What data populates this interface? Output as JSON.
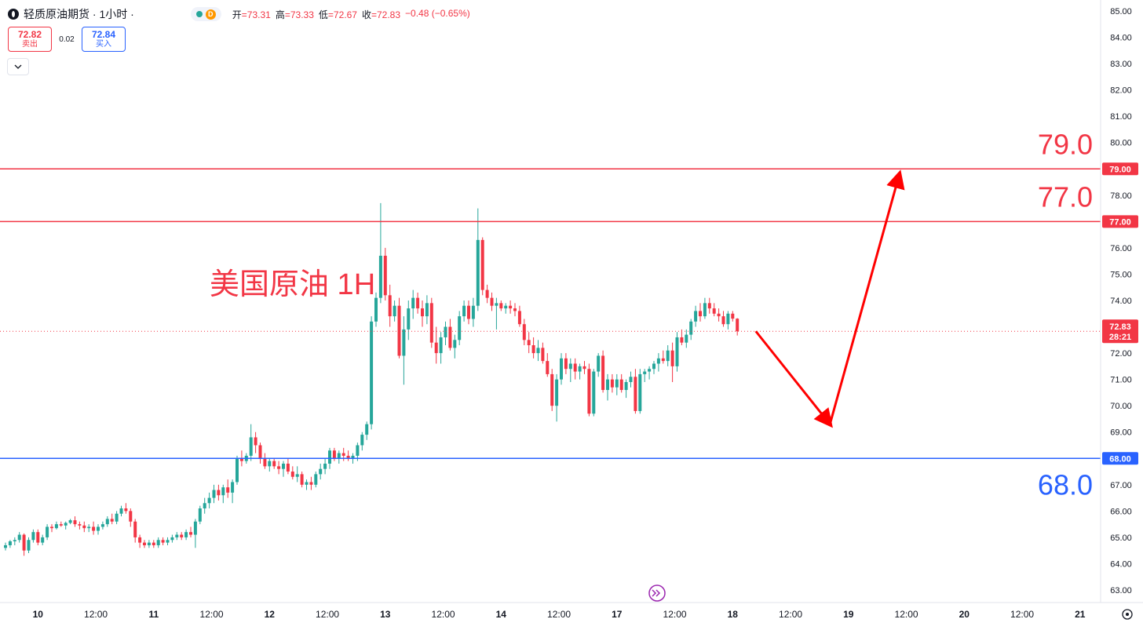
{
  "header": {
    "title": "轻质原油期货 · 1小时 ·",
    "status_badge": "D",
    "ohlc": [
      {
        "label": "开",
        "value": "=73.31"
      },
      {
        "label": "高",
        "value": "=73.33"
      },
      {
        "label": "低",
        "value": "=72.67"
      },
      {
        "label": "收",
        "value": "=72.83"
      },
      {
        "label": "",
        "value": "−0.48 (−0.65%)"
      }
    ]
  },
  "trade": {
    "sell_price": "72.82",
    "sell_label": "卖出",
    "spread": "0.02",
    "buy_price": "72.84",
    "buy_label": "买入"
  },
  "icons": {
    "symbol": "oil-drop-icon",
    "status": "market-status-icon",
    "collapse": "chevron-down-icon",
    "scroll_to_realtime": "scroll-to-realtime-icon",
    "settings": "gear-icon"
  },
  "colors": {
    "up": "#26a69a",
    "down": "#f23645",
    "resistance": "#f23645",
    "support": "#2962ff",
    "arrow": "#ff0000",
    "scroll_button": "#9c27b0"
  },
  "chart_data": {
    "type": "candlestick",
    "title": "美国原油 1H",
    "ylim": [
      62.5,
      85.3
    ],
    "y_ticks": [
      "63.00",
      "64.00",
      "65.00",
      "66.00",
      "67.00",
      "68.00",
      "69.00",
      "70.00",
      "71.00",
      "72.00",
      "73.00",
      "74.00",
      "75.00",
      "76.00",
      "77.00",
      "78.00",
      "79.00",
      "80.00",
      "81.00",
      "82.00",
      "83.00",
      "84.00",
      "85.00"
    ],
    "x_ticks": [
      "10",
      "12:00",
      "11",
      "12:00",
      "12",
      "12:00",
      "13",
      "12:00",
      "14",
      "12:00",
      "17",
      "12:00",
      "18",
      "12:00",
      "19",
      "12:00",
      "20",
      "12:00",
      "21"
    ],
    "candles": [
      [
        64.6,
        64.8,
        64.5,
        64.7
      ],
      [
        64.7,
        64.9,
        64.6,
        64.85
      ],
      [
        64.85,
        65.0,
        64.7,
        64.9
      ],
      [
        64.9,
        65.2,
        64.8,
        65.1
      ],
      [
        65.1,
        65.15,
        64.3,
        64.5
      ],
      [
        64.5,
        65.0,
        64.4,
        64.9
      ],
      [
        64.9,
        65.3,
        64.8,
        65.2
      ],
      [
        65.2,
        65.3,
        64.7,
        64.8
      ],
      [
        64.8,
        65.1,
        64.7,
        65.0
      ],
      [
        65.0,
        65.5,
        64.9,
        65.4
      ],
      [
        65.4,
        65.5,
        65.2,
        65.35
      ],
      [
        65.35,
        65.6,
        65.3,
        65.5
      ],
      [
        65.5,
        65.6,
        65.4,
        65.45
      ],
      [
        65.45,
        65.6,
        65.3,
        65.55
      ],
      [
        65.55,
        65.7,
        65.5,
        65.65
      ],
      [
        65.65,
        65.8,
        65.4,
        65.5
      ],
      [
        65.5,
        65.6,
        65.3,
        65.45
      ],
      [
        65.45,
        65.6,
        65.2,
        65.35
      ],
      [
        65.35,
        65.5,
        65.2,
        65.4
      ],
      [
        65.4,
        65.6,
        65.1,
        65.25
      ],
      [
        65.25,
        65.5,
        65.1,
        65.4
      ],
      [
        65.4,
        65.6,
        65.3,
        65.5
      ],
      [
        65.5,
        65.8,
        65.4,
        65.7
      ],
      [
        65.7,
        65.9,
        65.5,
        65.6
      ],
      [
        65.6,
        66.0,
        65.5,
        65.9
      ],
      [
        65.9,
        66.2,
        65.8,
        66.1
      ],
      [
        66.1,
        66.3,
        65.9,
        66.0
      ],
      [
        66.0,
        66.1,
        65.4,
        65.6
      ],
      [
        65.6,
        65.7,
        64.8,
        65.0
      ],
      [
        65.0,
        65.1,
        64.6,
        64.8
      ],
      [
        64.8,
        64.9,
        64.6,
        64.7
      ],
      [
        64.7,
        64.9,
        64.6,
        64.8
      ],
      [
        64.8,
        64.9,
        64.6,
        64.7
      ],
      [
        64.7,
        65.0,
        64.6,
        64.9
      ],
      [
        64.9,
        65.0,
        64.7,
        64.8
      ],
      [
        64.8,
        65.0,
        64.7,
        64.9
      ],
      [
        64.9,
        65.1,
        64.8,
        65.0
      ],
      [
        65.0,
        65.2,
        64.9,
        65.1
      ],
      [
        65.1,
        65.2,
        64.9,
        65.0
      ],
      [
        65.0,
        65.3,
        64.9,
        65.2
      ],
      [
        65.2,
        65.4,
        65.0,
        65.1
      ],
      [
        65.1,
        65.7,
        64.6,
        65.6
      ],
      [
        65.6,
        66.2,
        65.5,
        66.1
      ],
      [
        66.1,
        66.5,
        65.9,
        66.3
      ],
      [
        66.3,
        66.7,
        66.1,
        66.5
      ],
      [
        66.5,
        67.0,
        66.3,
        66.8
      ],
      [
        66.8,
        67.0,
        66.4,
        66.6
      ],
      [
        66.6,
        67.0,
        66.3,
        66.9
      ],
      [
        66.9,
        67.2,
        66.5,
        66.7
      ],
      [
        66.7,
        67.2,
        66.3,
        67.1
      ],
      [
        67.1,
        68.1,
        67.0,
        68.0
      ],
      [
        68.0,
        68.3,
        67.7,
        67.9
      ],
      [
        67.9,
        68.2,
        67.8,
        68.1
      ],
      [
        68.1,
        69.3,
        67.9,
        68.8
      ],
      [
        68.8,
        69.0,
        68.2,
        68.5
      ],
      [
        68.5,
        68.6,
        67.8,
        68.0
      ],
      [
        68.0,
        68.2,
        67.6,
        67.7
      ],
      [
        67.7,
        68.0,
        67.5,
        67.9
      ],
      [
        67.9,
        68.0,
        67.6,
        67.7
      ],
      [
        67.7,
        67.9,
        67.4,
        67.6
      ],
      [
        67.6,
        67.9,
        67.3,
        67.8
      ],
      [
        67.8,
        68.0,
        67.4,
        67.5
      ],
      [
        67.5,
        67.7,
        67.2,
        67.3
      ],
      [
        67.3,
        67.7,
        67.1,
        67.4
      ],
      [
        67.4,
        67.5,
        66.9,
        67.0
      ],
      [
        67.0,
        67.2,
        66.8,
        67.1
      ],
      [
        67.1,
        67.3,
        66.8,
        67.0
      ],
      [
        67.0,
        67.5,
        66.9,
        67.4
      ],
      [
        67.4,
        67.8,
        67.2,
        67.6
      ],
      [
        67.6,
        68.0,
        67.4,
        67.8
      ],
      [
        67.8,
        68.4,
        67.6,
        68.3
      ],
      [
        68.3,
        68.4,
        67.9,
        68.0
      ],
      [
        68.0,
        68.3,
        67.8,
        68.2
      ],
      [
        68.2,
        68.4,
        67.9,
        68.1
      ],
      [
        68.1,
        68.3,
        67.9,
        68.0
      ],
      [
        68.0,
        68.2,
        67.8,
        68.1
      ],
      [
        68.1,
        68.6,
        67.9,
        68.5
      ],
      [
        68.5,
        69.0,
        68.3,
        68.9
      ],
      [
        68.9,
        69.4,
        68.7,
        69.3
      ],
      [
        69.3,
        73.4,
        69.1,
        73.2
      ],
      [
        73.2,
        74.3,
        73.0,
        74.1
      ],
      [
        74.1,
        77.7,
        73.9,
        75.7
      ],
      [
        75.7,
        76.0,
        74.0,
        74.2
      ],
      [
        74.2,
        74.6,
        73.0,
        73.4
      ],
      [
        73.4,
        74.0,
        73.2,
        73.8
      ],
      [
        73.8,
        74.1,
        71.8,
        71.9
      ],
      [
        71.9,
        73.4,
        70.8,
        72.9
      ],
      [
        72.9,
        74.0,
        72.5,
        73.7
      ],
      [
        73.7,
        74.4,
        73.3,
        74.1
      ],
      [
        74.1,
        74.3,
        73.5,
        73.7
      ],
      [
        73.7,
        74.0,
        73.0,
        73.4
      ],
      [
        73.4,
        74.2,
        73.1,
        73.9
      ],
      [
        73.9,
        74.1,
        72.2,
        72.4
      ],
      [
        72.4,
        73.0,
        71.6,
        72.0
      ],
      [
        72.0,
        72.8,
        71.6,
        72.6
      ],
      [
        72.6,
        73.2,
        72.3,
        73.0
      ],
      [
        73.0,
        73.3,
        72.1,
        72.2
      ],
      [
        72.2,
        72.7,
        71.8,
        72.5
      ],
      [
        72.5,
        73.6,
        72.3,
        73.4
      ],
      [
        73.4,
        74.0,
        73.2,
        73.8
      ],
      [
        73.8,
        74.0,
        73.1,
        73.3
      ],
      [
        73.3,
        74.1,
        73.0,
        73.8
      ],
      [
        73.8,
        77.5,
        73.6,
        76.3
      ],
      [
        76.3,
        76.4,
        74.2,
        74.4
      ],
      [
        74.4,
        74.6,
        73.9,
        74.1
      ],
      [
        74.1,
        74.3,
        73.6,
        73.8
      ],
      [
        73.8,
        74.1,
        72.9,
        73.9
      ],
      [
        73.9,
        74.0,
        73.6,
        73.7
      ],
      [
        73.7,
        73.9,
        73.5,
        73.8
      ],
      [
        73.8,
        74.0,
        73.5,
        73.7
      ],
      [
        73.7,
        73.9,
        73.4,
        73.6
      ],
      [
        73.6,
        73.8,
        73.0,
        73.1
      ],
      [
        73.1,
        73.3,
        72.3,
        72.5
      ],
      [
        72.5,
        72.8,
        72.0,
        72.3
      ],
      [
        72.3,
        72.6,
        71.8,
        72.0
      ],
      [
        72.0,
        72.5,
        71.7,
        72.2
      ],
      [
        72.2,
        72.4,
        71.6,
        71.7
      ],
      [
        71.7,
        72.0,
        71.1,
        71.2
      ],
      [
        71.2,
        71.4,
        69.8,
        70.0
      ],
      [
        70.0,
        71.2,
        69.4,
        71.0
      ],
      [
        71.0,
        72.0,
        70.8,
        71.8
      ],
      [
        71.8,
        72.0,
        71.2,
        71.4
      ],
      [
        71.4,
        71.8,
        70.9,
        71.6
      ],
      [
        71.6,
        71.8,
        71.0,
        71.3
      ],
      [
        71.3,
        71.6,
        71.0,
        71.5
      ],
      [
        71.5,
        71.7,
        71.2,
        71.4
      ],
      [
        71.4,
        71.6,
        69.6,
        69.7
      ],
      [
        69.7,
        71.4,
        69.6,
        71.3
      ],
      [
        71.3,
        72.0,
        71.1,
        71.9
      ],
      [
        71.9,
        72.1,
        70.5,
        70.6
      ],
      [
        70.6,
        71.2,
        70.2,
        71.0
      ],
      [
        71.0,
        71.2,
        70.5,
        70.7
      ],
      [
        70.7,
        71.2,
        70.4,
        71.0
      ],
      [
        71.0,
        71.2,
        70.5,
        70.6
      ],
      [
        70.6,
        71.0,
        70.3,
        70.9
      ],
      [
        70.9,
        71.3,
        70.7,
        71.1
      ],
      [
        71.1,
        71.4,
        69.7,
        69.8
      ],
      [
        69.8,
        71.4,
        69.7,
        71.2
      ],
      [
        71.2,
        71.4,
        70.9,
        71.3
      ],
      [
        71.3,
        71.5,
        71.0,
        71.4
      ],
      [
        71.4,
        71.7,
        71.2,
        71.6
      ],
      [
        71.6,
        72.0,
        71.3,
        71.8
      ],
      [
        71.8,
        72.1,
        71.6,
        71.7
      ],
      [
        71.7,
        72.3,
        71.5,
        72.1
      ],
      [
        72.1,
        72.4,
        70.9,
        71.5
      ],
      [
        71.5,
        72.8,
        71.3,
        72.6
      ],
      [
        72.6,
        72.9,
        72.3,
        72.4
      ],
      [
        72.4,
        72.9,
        72.2,
        72.7
      ],
      [
        72.7,
        73.3,
        72.5,
        73.2
      ],
      [
        73.2,
        73.8,
        73.0,
        73.6
      ],
      [
        73.6,
        73.9,
        73.2,
        73.4
      ],
      [
        73.4,
        74.1,
        73.3,
        73.9
      ],
      [
        73.9,
        74.1,
        73.5,
        73.7
      ],
      [
        73.7,
        73.9,
        73.4,
        73.5
      ],
      [
        73.5,
        73.7,
        73.2,
        73.4
      ],
      [
        73.4,
        73.6,
        73.0,
        73.1
      ],
      [
        73.1,
        73.6,
        72.9,
        73.5
      ],
      [
        73.5,
        73.6,
        73.2,
        73.31
      ],
      [
        73.31,
        73.33,
        72.67,
        72.83
      ]
    ],
    "horizontal_lines": [
      {
        "price": 79.0,
        "color": "#f23645",
        "axis_label": "79.00",
        "chart_label": "79.0"
      },
      {
        "price": 77.0,
        "color": "#f23645",
        "axis_label": "77.00",
        "chart_label": "77.0"
      },
      {
        "price": 68.0,
        "color": "#2962ff",
        "axis_label": "68.00",
        "chart_label": "68.0"
      }
    ],
    "last_price": {
      "value": 72.83,
      "label": "72.83",
      "countdown": "28:21"
    },
    "scenario_arrows": {
      "down": {
        "from": [
          162,
          72.83
        ],
        "to": [
          178,
          69.3
        ]
      },
      "up": {
        "from": [
          178,
          69.3
        ],
        "to": [
          193,
          78.8
        ]
      }
    }
  }
}
